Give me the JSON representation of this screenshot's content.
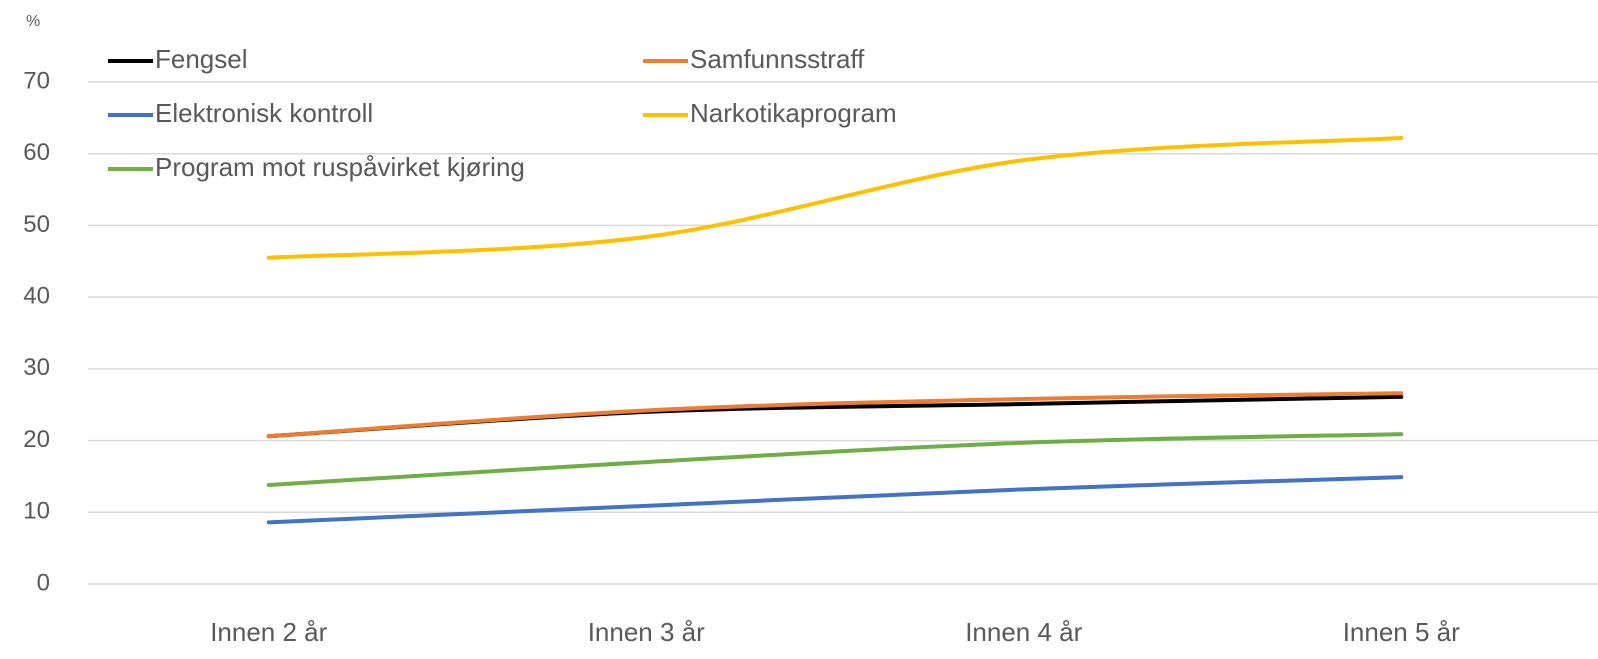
{
  "chart_data": {
    "type": "line",
    "y_label": "%",
    "categories": [
      "Innen 2 år",
      "Innen 3 år",
      "Innen 4 år",
      "Innen 5 år"
    ],
    "series": [
      {
        "name": "Fengsel",
        "color": "#000000",
        "values": [
          20.6,
          24.0,
          25.1,
          26.1
        ]
      },
      {
        "name": "Samfunnsstraff",
        "color": "#ed7d31",
        "values": [
          20.6,
          24.2,
          25.8,
          26.6
        ]
      },
      {
        "name": "Elektronisk kontroll",
        "color": "#4472c4",
        "values": [
          8.6,
          10.9,
          13.2,
          14.9
        ]
      },
      {
        "name": "Narkotikaprogram",
        "color": "#ffc000",
        "values": [
          45.5,
          48.4,
          59.1,
          62.2
        ]
      },
      {
        "name": "Program mot ruspåvirket kjøring",
        "color": "#70ad47",
        "values": [
          13.8,
          17.0,
          19.7,
          20.9
        ]
      }
    ],
    "ylim": [
      0,
      70
    ],
    "yticks": [
      0,
      10,
      20,
      30,
      40,
      50,
      60,
      70
    ],
    "grid": true,
    "legend": "top"
  }
}
